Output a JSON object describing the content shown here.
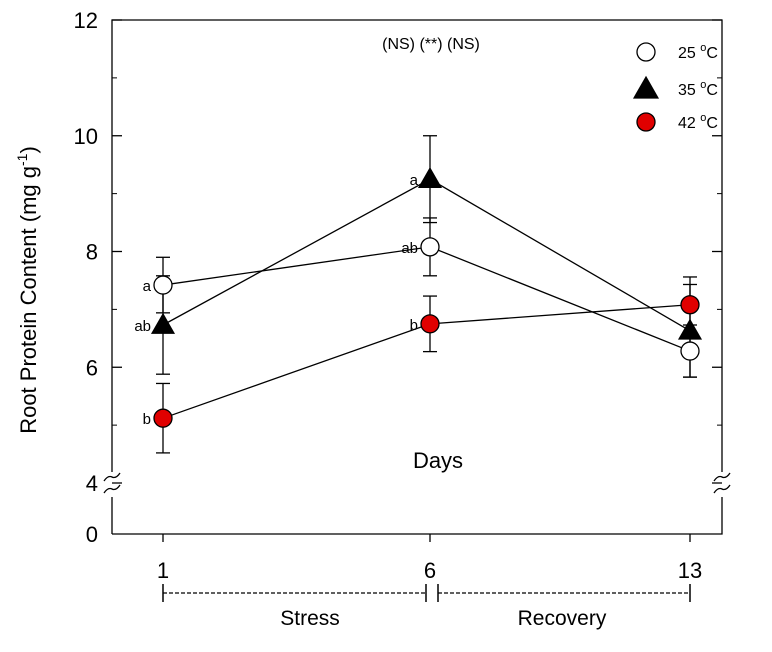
{
  "chart_data": {
    "type": "line",
    "ylabel_main": "Root Protein Content (mg g",
    "ylabel_sup": "-1",
    "ylabel_close": ")",
    "xlabel": "Days",
    "significance": "(NS) (**) (NS)",
    "ylim": [
      4,
      12
    ],
    "y_break_low": 0,
    "y_ticks": [
      "4",
      "6",
      "8",
      "10",
      "12"
    ],
    "y_zero_label": "0",
    "x": [
      1,
      6,
      13
    ],
    "x_tick_labels": [
      "1",
      "6",
      "13"
    ],
    "phases": [
      {
        "name": "Stress",
        "from": 1,
        "to": 6
      },
      {
        "name": "Recovery",
        "from": 6,
        "to": 13
      }
    ],
    "series": [
      {
        "name": "25",
        "unit_sup": "o",
        "unit": "C",
        "marker": "circle",
        "fill": "#ffffff",
        "values": [
          7.42,
          8.08,
          6.28
        ],
        "errors": [
          0.48,
          0.5,
          0.45
        ],
        "labels": [
          "a",
          "ab",
          ""
        ]
      },
      {
        "name": "35",
        "unit_sup": "o",
        "unit": "C",
        "marker": "triangle",
        "fill": "#000000",
        "values": [
          6.73,
          9.25,
          6.63
        ],
        "errors": [
          0.85,
          0.75,
          0.8
        ],
        "labels": [
          "ab",
          "a",
          ""
        ]
      },
      {
        "name": "42",
        "unit_sup": "o",
        "unit": "C",
        "marker": "circle",
        "fill": "#e00000",
        "values": [
          5.12,
          6.75,
          7.08
        ],
        "errors": [
          0.6,
          0.48,
          0.48
        ],
        "labels": [
          "b",
          "b",
          ""
        ]
      }
    ]
  }
}
